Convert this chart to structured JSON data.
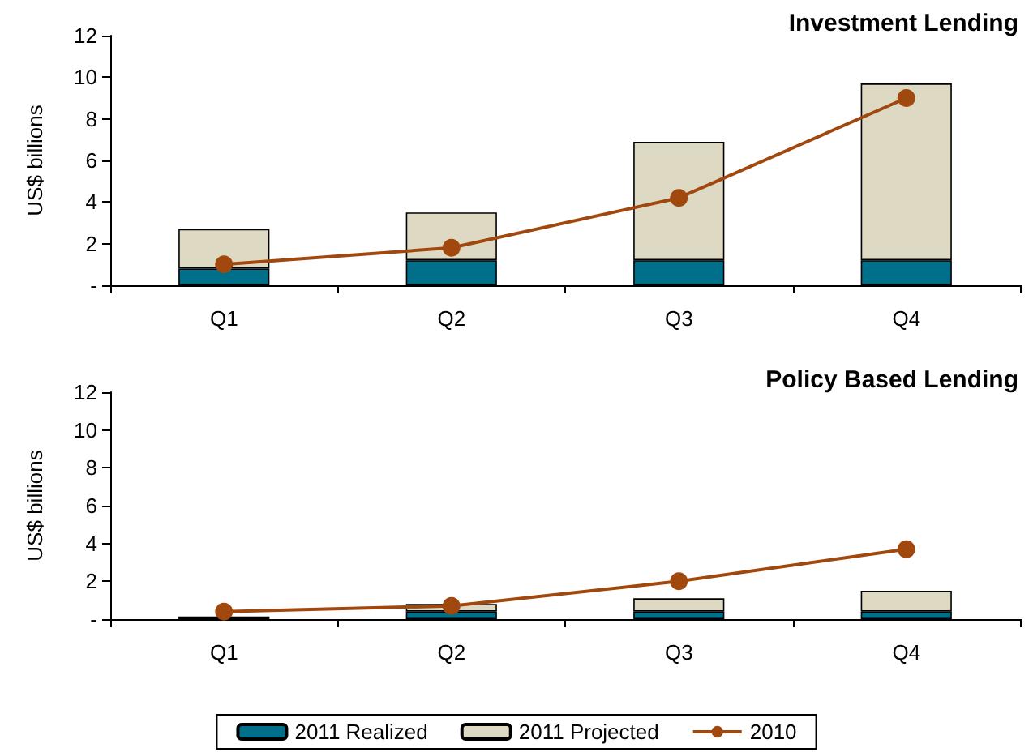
{
  "chart_data": [
    {
      "type": "bar",
      "title": "Investment Lending",
      "ylabel": "US$ billions",
      "categories": [
        "Q1",
        "Q2",
        "Q3",
        "Q4"
      ],
      "stacked": true,
      "series": [
        {
          "color": "#006f8a",
          "values": [
            0.8,
            1.2,
            1.2,
            1.2
          ]
        },
        {
          "color": "#ddd9c3",
          "values": [
            1.9,
            2.3,
            5.7,
            8.5
          ]
        },
        {
          "type": "line",
          "color": "#a0480e",
          "marker": "circle",
          "values": [
            1.0,
            1.8,
            4.2,
            9.0
          ]
        }
      ],
      "ylim": [
        0,
        12
      ],
      "yticks": [
        {
          "value": 0,
          "label": "-"
        },
        2,
        4,
        6,
        8,
        10,
        12
      ],
      "grid": false,
      "legend": false
    },
    {
      "type": "bar",
      "title": "Policy Based Lending",
      "ylabel": "US$ billions",
      "categories": [
        "Q1",
        "Q2",
        "Q3",
        "Q4"
      ],
      "stacked": true,
      "series": [
        {
          "name": "2011 Realized",
          "color": "#006f8a",
          "values": [
            0.1,
            0.4,
            0.4,
            0.4
          ]
        },
        {
          "name": "2011 Projected",
          "color": "#ddd9c3",
          "values": [
            0,
            0.4,
            0.7,
            1.1
          ]
        },
        {
          "name": "2010",
          "type": "line",
          "color": "#a0480e",
          "marker": "circle",
          "values": [
            0.4,
            0.7,
            2.0,
            3.7
          ]
        }
      ],
      "ylim": [
        0,
        12
      ],
      "yticks": [
        {
          "value": 0,
          "label": "-"
        },
        2,
        4,
        6,
        8,
        10,
        12
      ],
      "grid": false,
      "legend": "bottom"
    }
  ]
}
